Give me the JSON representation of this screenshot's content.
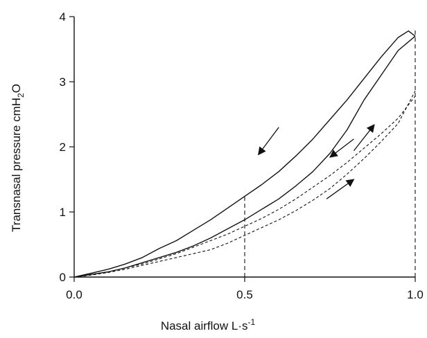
{
  "chart_data": {
    "type": "line",
    "xlabel": "Nasal airflow  L·s",
    "xlabel_sup": "-1",
    "ylabel": "Transnasal pressure  cmH",
    "ylabel_sub": "2",
    "ylabel_tail": "O",
    "xlim": [
      0,
      1.0
    ],
    "ylim": [
      0,
      4
    ],
    "x_ticks": [
      "0.0",
      "0.5",
      "1.0"
    ],
    "y_ticks": [
      "0",
      "1",
      "2",
      "3",
      "4"
    ],
    "grid": false,
    "legend": "none",
    "series": [
      {
        "style": "solid",
        "color": "#111111",
        "x": [
          0.0,
          0.05,
          0.1,
          0.15,
          0.2,
          0.25,
          0.3,
          0.35,
          0.4,
          0.45,
          0.5,
          0.55,
          0.6,
          0.65,
          0.7,
          0.75,
          0.8,
          0.85,
          0.9,
          0.95,
          0.98,
          1.0
        ],
        "y": [
          0.0,
          0.06,
          0.12,
          0.2,
          0.3,
          0.44,
          0.56,
          0.72,
          0.88,
          1.06,
          1.24,
          1.42,
          1.62,
          1.86,
          2.12,
          2.42,
          2.72,
          3.05,
          3.38,
          3.68,
          3.78,
          3.7
        ]
      },
      {
        "style": "solid",
        "color": "#111111",
        "x": [
          0.0,
          0.05,
          0.1,
          0.15,
          0.2,
          0.25,
          0.3,
          0.35,
          0.4,
          0.45,
          0.5,
          0.55,
          0.6,
          0.65,
          0.7,
          0.75,
          0.8,
          0.85,
          0.9,
          0.95,
          1.0
        ],
        "y": [
          0.0,
          0.04,
          0.08,
          0.14,
          0.22,
          0.3,
          0.38,
          0.48,
          0.6,
          0.74,
          0.88,
          1.04,
          1.2,
          1.4,
          1.62,
          1.9,
          2.26,
          2.72,
          3.1,
          3.48,
          3.7
        ]
      },
      {
        "style": "dashed",
        "color": "#111111",
        "x": [
          0.0,
          0.05,
          0.1,
          0.15,
          0.2,
          0.25,
          0.3,
          0.35,
          0.4,
          0.45,
          0.5,
          0.55,
          0.6,
          0.65,
          0.7,
          0.75,
          0.8,
          0.85,
          0.9,
          0.95,
          1.0
        ],
        "y": [
          0.0,
          0.04,
          0.08,
          0.14,
          0.2,
          0.28,
          0.36,
          0.46,
          0.56,
          0.66,
          0.78,
          0.9,
          1.04,
          1.2,
          1.38,
          1.56,
          1.76,
          1.98,
          2.2,
          2.44,
          2.78
        ]
      },
      {
        "style": "dashed",
        "color": "#111111",
        "x": [
          0.0,
          0.05,
          0.1,
          0.15,
          0.2,
          0.25,
          0.3,
          0.35,
          0.4,
          0.45,
          0.5,
          0.55,
          0.6,
          0.65,
          0.7,
          0.75,
          0.8,
          0.85,
          0.9,
          0.95,
          1.0
        ],
        "y": [
          0.0,
          0.03,
          0.07,
          0.12,
          0.18,
          0.24,
          0.3,
          0.36,
          0.42,
          0.52,
          0.64,
          0.76,
          0.88,
          1.02,
          1.18,
          1.36,
          1.58,
          1.82,
          2.08,
          2.36,
          2.86
        ]
      }
    ],
    "reference_lines": [
      {
        "x": 0.5,
        "y_top": 1.24,
        "style": "dashed"
      },
      {
        "x": 1.0,
        "y_top": 3.8,
        "style": "dashed"
      }
    ],
    "arrows": [
      {
        "from": [
          0.6,
          2.3
        ],
        "to": [
          0.54,
          1.88
        ]
      },
      {
        "from": [
          0.82,
          1.94
        ],
        "to": [
          0.88,
          2.34
        ]
      },
      {
        "from": [
          0.82,
          2.12
        ],
        "to": [
          0.75,
          1.84
        ]
      },
      {
        "from": [
          0.74,
          1.2
        ],
        "to": [
          0.82,
          1.5
        ]
      }
    ]
  }
}
